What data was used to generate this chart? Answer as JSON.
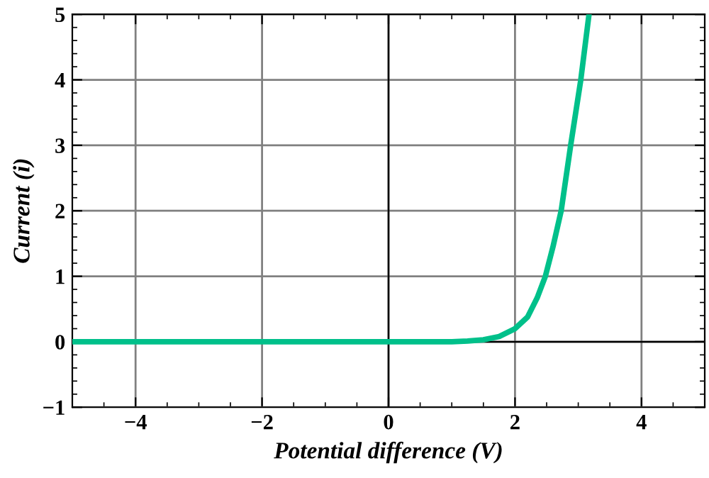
{
  "chart_data": {
    "type": "line",
    "xlabel": "Potential difference (V)",
    "ylabel": "Current (i)",
    "series": [
      {
        "color": "#00c08a",
        "x": [
          -5,
          -4,
          -3,
          -2,
          -1,
          0,
          0.5,
          1,
          1.25,
          1.5,
          1.75,
          2,
          2.2,
          2.35,
          2.48,
          2.6,
          2.73,
          2.88,
          3.04,
          3.17
        ],
        "values": [
          0,
          0,
          0,
          0,
          0,
          0,
          0,
          0,
          0.01,
          0.03,
          0.08,
          0.2,
          0.38,
          0.67,
          1,
          1.45,
          2,
          3,
          4,
          5
        ]
      }
    ],
    "xlim": [
      -5,
      5
    ],
    "ylim": [
      -1,
      5
    ],
    "xticks": [
      -4,
      -2,
      0,
      2,
      4
    ],
    "yticks": [
      -1,
      0,
      1,
      2,
      3,
      4,
      5
    ],
    "grid": true,
    "marker": "none",
    "line_style": "solid"
  }
}
